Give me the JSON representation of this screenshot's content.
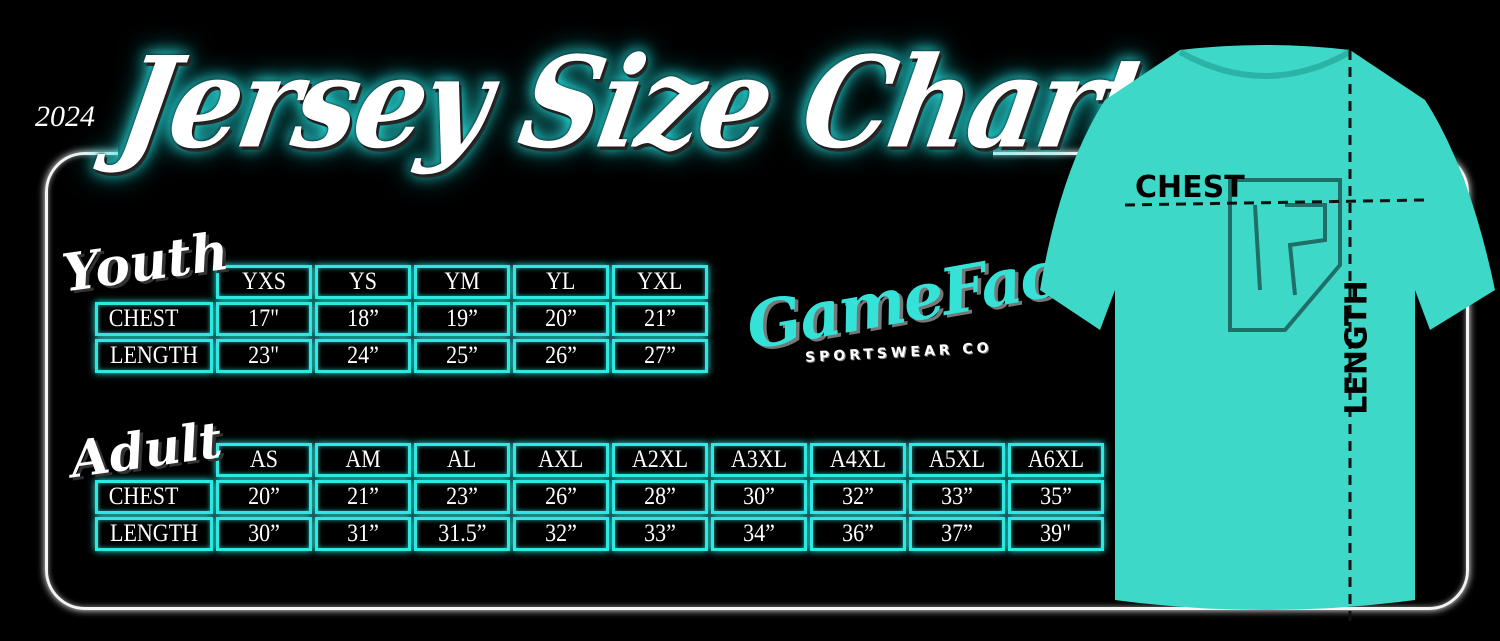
{
  "header": {
    "year": "2024",
    "title": "Jersey Size Chart"
  },
  "youth": {
    "label": "Youth",
    "sizes": [
      "YXS",
      "YS",
      "YM",
      "YL",
      "YXL"
    ],
    "rows": [
      {
        "label": "CHEST",
        "values": [
          "17\"",
          "18”",
          "19”",
          "20”",
          "21”"
        ]
      },
      {
        "label": "LENGTH",
        "values": [
          "23\"",
          "24”",
          "25”",
          "26”",
          "27”"
        ]
      }
    ]
  },
  "adult": {
    "label": "Adult",
    "sizes": [
      "AS",
      "AM",
      "AL",
      "AXL",
      "A2XL",
      "A3XL",
      "A4XL",
      "A5XL",
      "A6XL"
    ],
    "rows": [
      {
        "label": "CHEST",
        "values": [
          "20”",
          "21”",
          "23”",
          "26”",
          "28”",
          "30”",
          "32”",
          "33”",
          "35”"
        ]
      },
      {
        "label": "LENGTH",
        "values": [
          "30”",
          "31”",
          "31.5”",
          "32”",
          "33”",
          "34”",
          "36”",
          "37”",
          "39\""
        ]
      }
    ]
  },
  "logo": {
    "name": "GameFace",
    "tagline": "SPORTSWEAR CO"
  },
  "diagram": {
    "chest_label": "CHEST",
    "length_label": "LENGTH"
  },
  "colors": {
    "accent": "#2fe8e2",
    "shirt": "#3ed8c8",
    "background": "#000000"
  }
}
